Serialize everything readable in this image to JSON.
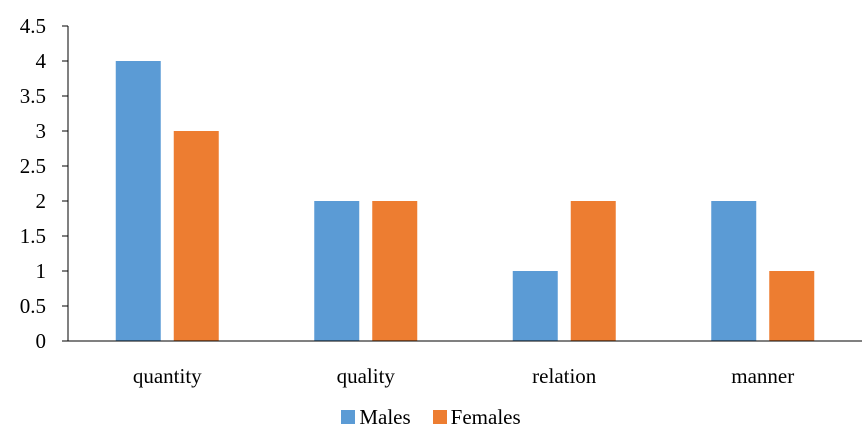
{
  "chart_data": {
    "type": "bar",
    "categories": [
      "quantity",
      "quality",
      "relation",
      "manner"
    ],
    "series": [
      {
        "name": "Males",
        "values": [
          4,
          2,
          1,
          2
        ],
        "color": "#5b9bd5"
      },
      {
        "name": "Females",
        "values": [
          3,
          2,
          2,
          1
        ],
        "color": "#ed7d31"
      }
    ],
    "title": "",
    "xlabel": "",
    "ylabel": "",
    "ylim": [
      0,
      4.5
    ],
    "yticks": [
      "0",
      "0.5",
      "1",
      "1.5",
      "2",
      "2.5",
      "3",
      "3.5",
      "4",
      "4.5"
    ],
    "grid": false,
    "legend_position": "bottom"
  }
}
